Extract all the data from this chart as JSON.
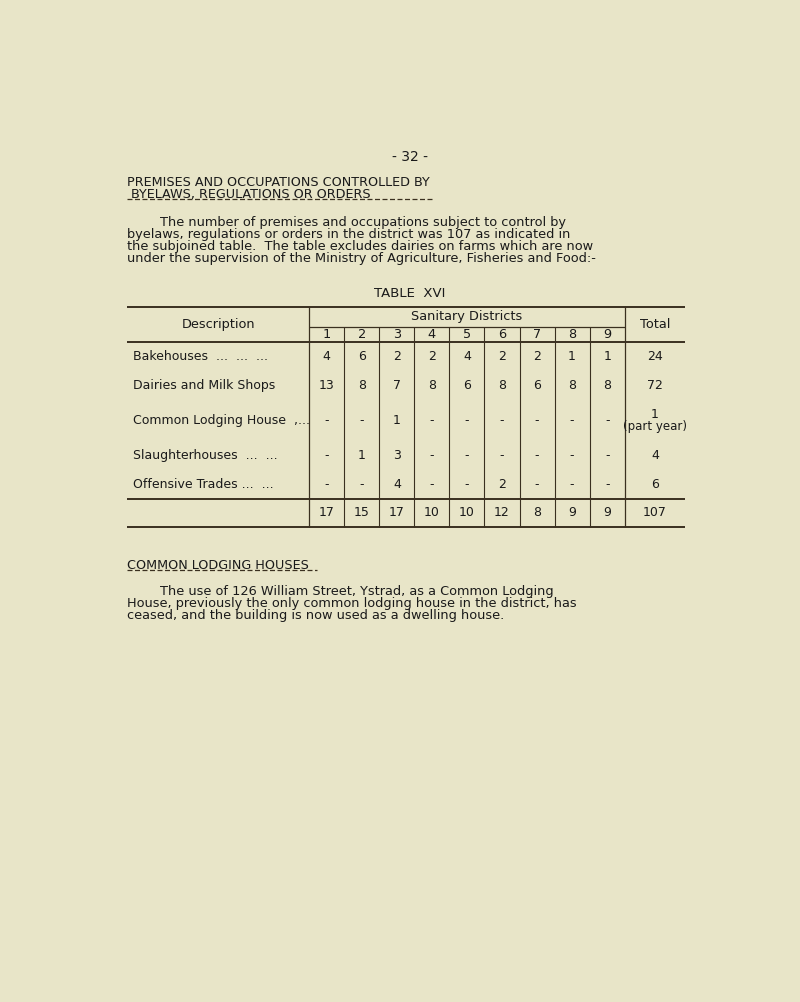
{
  "page_number": "- 32 -",
  "title_line1": "PREMISES AND OCCUPATIONS CONTROLLED BY",
  "title_line2": " BYELAWS, REGULATIONS OR ORDERS",
  "body_text": [
    "        The number of premises and occupations subject to control by",
    "byelaws, regulations or orders in the district was 107 as indicated in",
    "the subjoined table.  The table excludes dairies on farms which are now",
    "under the supervision of the Ministry of Agriculture, Fisheries and Food:-"
  ],
  "table_title": "TABLE  XVI",
  "col_header_span": "Sanitary Districts",
  "col_headers": [
    "1",
    "2",
    "3",
    "4",
    "5",
    "6",
    "7",
    "8",
    "9"
  ],
  "col_desc": "Description",
  "col_total": "Total",
  "rows": [
    {
      "label": "Bakehouses  ...  ...  ...",
      "values": [
        "4",
        "6",
        "2",
        "2",
        "4",
        "2",
        "2",
        "1",
        "1"
      ],
      "total": "24",
      "total2": ""
    },
    {
      "label": "Dairies and Milk Shops",
      "values": [
        "13",
        "8",
        "7",
        "8",
        "6",
        "8",
        "6",
        "8",
        "8"
      ],
      "total": "72",
      "total2": ""
    },
    {
      "label": "Common Lodging House  ,...",
      "values": [
        "-",
        "-",
        "1",
        "-",
        "-",
        "-",
        "-",
        "-",
        "-"
      ],
      "total": "1",
      "total2": "(part year)"
    },
    {
      "label": "Slaughterhouses  ...  ...",
      "values": [
        "-",
        "1",
        "3",
        "-",
        "-",
        "-",
        "-",
        "-",
        "-"
      ],
      "total": "4",
      "total2": ""
    },
    {
      "label": "Offensive Trades ...  ...",
      "values": [
        "-",
        "-",
        "4",
        "-",
        "-",
        "2",
        "-",
        "-",
        "-"
      ],
      "total": "6",
      "total2": ""
    }
  ],
  "totals_row": {
    "values": [
      "17",
      "15",
      "17",
      "10",
      "10",
      "12",
      "8",
      "9",
      "9"
    ],
    "total": "107"
  },
  "section2_title": "COMMON LODGING HOUSES",
  "section2_text": [
    "        The use of 126 William Street, Ystrad, as a Common Lodging",
    "House, previously the only common lodging house in the district, has",
    "ceased, and the building is now used as a dwelling house."
  ],
  "bg_color": "#e8e5c8",
  "text_color": "#1a1a1a",
  "line_color": "#3a3020"
}
